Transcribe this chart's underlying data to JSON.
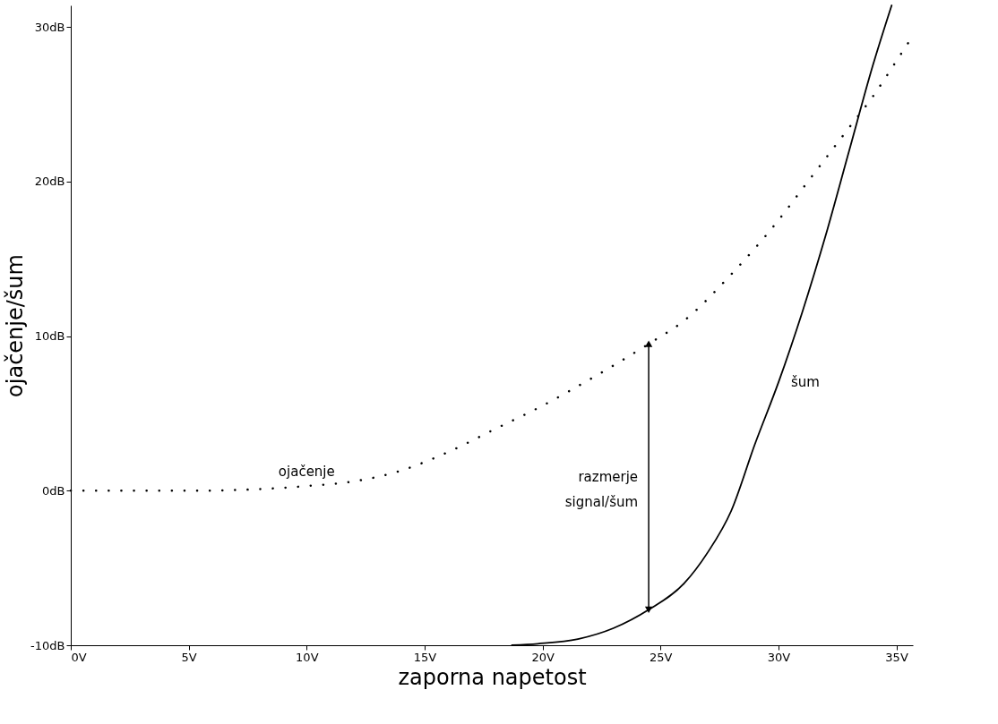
{
  "chart_data": {
    "type": "line",
    "xlabel": "zaporna napetost",
    "ylabel": "ojačenje/šum",
    "xlim": [
      0,
      35.7
    ],
    "ylim": [
      -10,
      31.4
    ],
    "xticks": [
      {
        "value": 0,
        "label": "0V"
      },
      {
        "value": 5,
        "label": "5V"
      },
      {
        "value": 10,
        "label": "10V"
      },
      {
        "value": 15,
        "label": "15V"
      },
      {
        "value": 20,
        "label": "20V"
      },
      {
        "value": 25,
        "label": "25V"
      },
      {
        "value": 30,
        "label": "30V"
      },
      {
        "value": 35,
        "label": "35V"
      }
    ],
    "yticks": [
      {
        "value": -10,
        "label": "-10dB"
      },
      {
        "value": 0,
        "label": "0dB"
      },
      {
        "value": 10,
        "label": "10dB"
      },
      {
        "value": 20,
        "label": "20dB"
      },
      {
        "value": 30,
        "label": "30dB"
      }
    ],
    "grid": false,
    "marker": "none",
    "series": [
      {
        "name": "ojačenje",
        "color": "#000000",
        "line_style": "dotted",
        "x": [
          0,
          5,
          8,
          10,
          12,
          14,
          16,
          18,
          20,
          22,
          24.5,
          26,
          28,
          30,
          31,
          32,
          33,
          34,
          35,
          35.6
        ],
        "values": [
          0,
          0,
          0.1,
          0.3,
          0.6,
          1.3,
          2.5,
          4,
          5.5,
          7.2,
          9.5,
          11,
          14,
          17.5,
          19.5,
          21.5,
          23.5,
          25.5,
          27.8,
          29.2
        ]
      },
      {
        "name": "šum",
        "color": "#000000",
        "line_style": "solid",
        "x": [
          18.7,
          19.8,
          21.5,
          23,
          24.5,
          26,
          27,
          28,
          29,
          30,
          31,
          32,
          33,
          34,
          34.8
        ],
        "values": [
          -10,
          -9.9,
          -9.6,
          -8.9,
          -7.7,
          -6,
          -4,
          -1.3,
          3,
          7,
          11.5,
          16.5,
          22,
          27.5,
          31.4
        ]
      }
    ],
    "annotations": [
      "razmerje signal/šum"
    ]
  }
}
